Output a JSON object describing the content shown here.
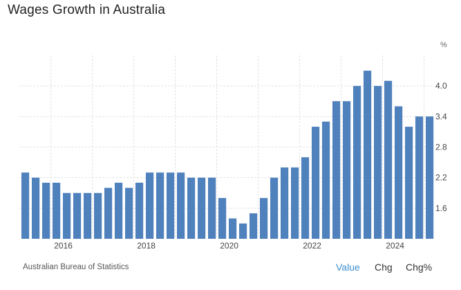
{
  "page": {
    "title": "Wages Growth in Australia"
  },
  "footer": {
    "source": "Australian Bureau of Statistics",
    "tabs": [
      "Value",
      "Chg",
      "Chg%"
    ],
    "active_tab": "Value"
  },
  "colors": {
    "bar": "#4f81bd",
    "grid": "#e2e2e2",
    "active_tab": "#3a8fd1"
  },
  "chart_data": {
    "type": "bar",
    "title": "Wages Growth in Australia",
    "unit": "%",
    "y_axis_side": "right",
    "ylim": [
      1.0,
      4.6
    ],
    "y_ticks": [
      "1.6",
      "2.2",
      "2.8",
      "3.4",
      "4.0"
    ],
    "x_ticks": [
      "2016",
      "2018",
      "2020",
      "2022",
      "2024"
    ],
    "grid": true,
    "categories": [
      "2015 Q2",
      "2015 Q3",
      "2015 Q4",
      "2016 Q1",
      "2016 Q2",
      "2016 Q3",
      "2016 Q4",
      "2017 Q1",
      "2017 Q2",
      "2017 Q3",
      "2017 Q4",
      "2018 Q1",
      "2018 Q2",
      "2018 Q3",
      "2018 Q4",
      "2019 Q1",
      "2019 Q2",
      "2019 Q3",
      "2019 Q4",
      "2020 Q1",
      "2020 Q2",
      "2020 Q3",
      "2020 Q4",
      "2021 Q1",
      "2021 Q2",
      "2021 Q3",
      "2021 Q4",
      "2022 Q1",
      "2022 Q2",
      "2022 Q3",
      "2022 Q4",
      "2023 Q1",
      "2023 Q2",
      "2023 Q3",
      "2023 Q4",
      "2024 Q1",
      "2024 Q2",
      "2024 Q3",
      "2024 Q4",
      "2025 Q1"
    ],
    "values": [
      2.3,
      2.2,
      2.1,
      2.1,
      1.9,
      1.9,
      1.9,
      1.9,
      2.0,
      2.1,
      2.0,
      2.1,
      2.3,
      2.3,
      2.3,
      2.3,
      2.2,
      2.2,
      2.2,
      1.8,
      1.4,
      1.3,
      1.5,
      1.8,
      2.2,
      2.4,
      2.4,
      2.6,
      3.2,
      3.3,
      3.7,
      3.7,
      4.0,
      4.3,
      4.0,
      4.1,
      3.6,
      3.2,
      3.4,
      3.4
    ]
  }
}
